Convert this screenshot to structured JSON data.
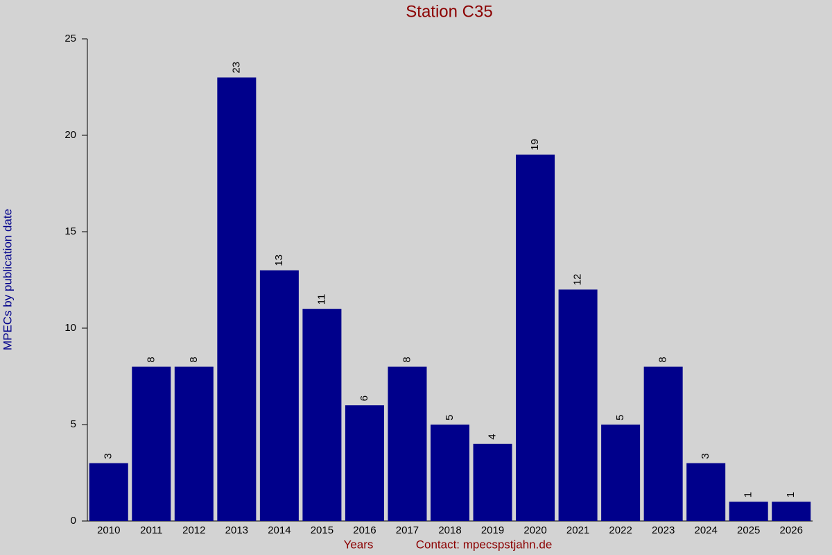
{
  "chart_data": {
    "type": "bar",
    "title": "Station C35",
    "ylabel": "MPECs by publication date",
    "xlabel": "Years",
    "contact": "Contact: mpecspstjahn.de",
    "categories": [
      "2010",
      "2011",
      "2012",
      "2013",
      "2014",
      "2015",
      "2016",
      "2017",
      "2018",
      "2019",
      "2020",
      "2021",
      "2022",
      "2023",
      "2024",
      "2025",
      "2026"
    ],
    "values": [
      3,
      8,
      8,
      23,
      13,
      11,
      6,
      8,
      5,
      4,
      19,
      12,
      5,
      8,
      3,
      1,
      1
    ],
    "color": "#00008b",
    "ylim": [
      0,
      25
    ],
    "yticks": [
      0,
      5,
      10,
      15,
      20,
      25
    ]
  }
}
